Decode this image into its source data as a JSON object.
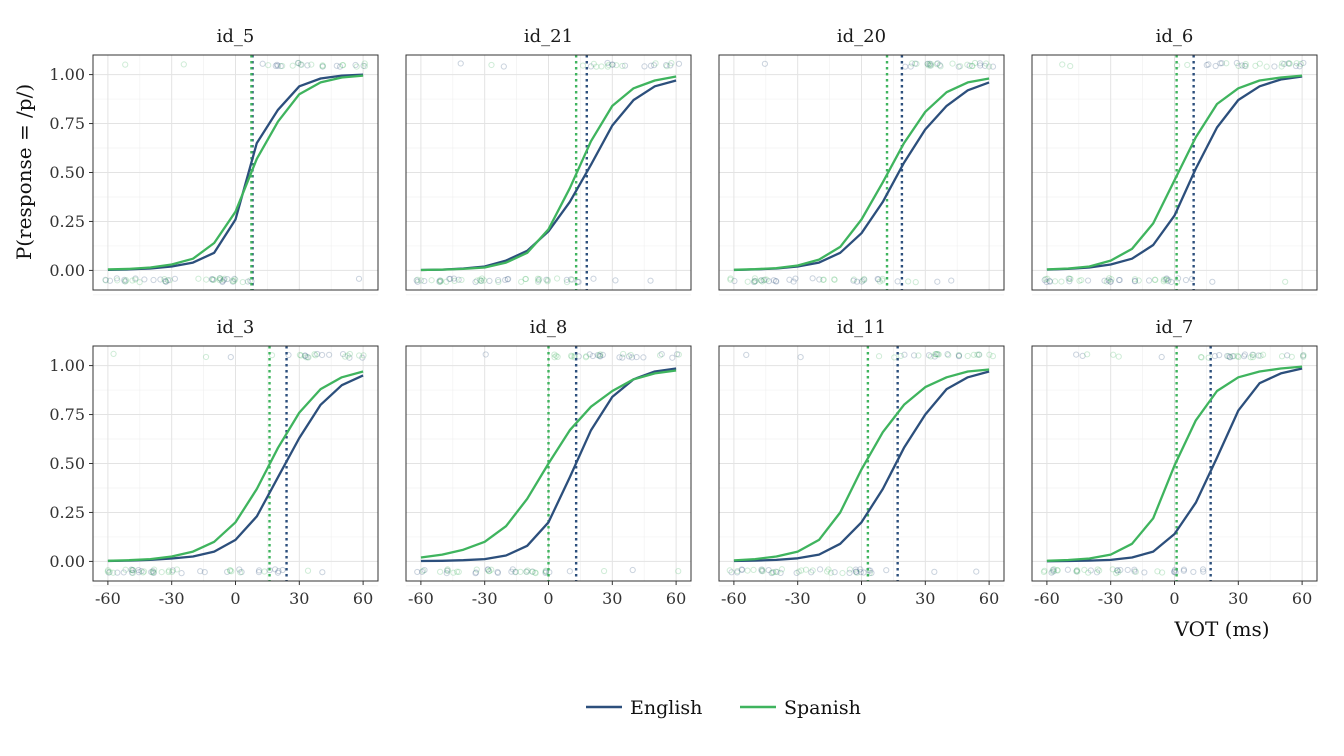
{
  "chart_data": {
    "type": "line",
    "layout": "facet-grid 2 rows x 4 columns",
    "xlabel": "VOT (ms)",
    "ylabel": "P(response = /p/)",
    "x": [
      -60,
      -50,
      -40,
      -30,
      -20,
      -10,
      0,
      10,
      20,
      30,
      40,
      50,
      60
    ],
    "xlim": [
      -67,
      67
    ],
    "ylim": [
      -0.1,
      1.1
    ],
    "x_ticks": [
      -60,
      -30,
      0,
      30,
      60
    ],
    "y_ticks": [
      0,
      0.25,
      0.5,
      0.75,
      1
    ],
    "x_tick_labels": [
      "-60",
      "-30",
      "0",
      "30",
      "60"
    ],
    "y_tick_labels": [
      "0.00",
      "0.25",
      "0.50",
      "0.75",
      "1.00"
    ],
    "grid": true,
    "legend": {
      "position": "bottom",
      "entries": [
        {
          "name": "English",
          "color": "#2c4f7c"
        },
        {
          "name": "Spanish",
          "color": "#3fb45e"
        }
      ]
    },
    "colors": {
      "English": "#2c4f7c",
      "Spanish": "#3fb45e"
    },
    "facets": [
      {
        "label": "id_5",
        "series": [
          {
            "name": "English",
            "values": [
              0.003,
              0.005,
              0.01,
              0.02,
              0.04,
              0.09,
              0.26,
              0.65,
              0.82,
              0.94,
              0.98,
              0.995,
              1.0
            ]
          },
          {
            "name": "Spanish",
            "values": [
              0.005,
              0.008,
              0.015,
              0.03,
              0.06,
              0.14,
              0.3,
              0.57,
              0.76,
              0.9,
              0.96,
              0.985,
              0.995
            ]
          }
        ],
        "boundaries": {
          "English": 8,
          "Spanish": 7.5
        }
      },
      {
        "label": "id_21",
        "series": [
          {
            "name": "English",
            "values": [
              0.002,
              0.004,
              0.01,
              0.02,
              0.05,
              0.1,
              0.2,
              0.35,
              0.54,
              0.74,
              0.87,
              0.94,
              0.97
            ]
          },
          {
            "name": "Spanish",
            "values": [
              0.002,
              0.004,
              0.008,
              0.015,
              0.04,
              0.09,
              0.21,
              0.42,
              0.66,
              0.84,
              0.93,
              0.97,
              0.99
            ]
          }
        ],
        "boundaries": {
          "English": 18,
          "Spanish": 13
        }
      },
      {
        "label": "id_20",
        "series": [
          {
            "name": "English",
            "values": [
              0.002,
              0.005,
              0.01,
              0.02,
              0.04,
              0.09,
              0.19,
              0.35,
              0.55,
              0.72,
              0.84,
              0.92,
              0.96
            ]
          },
          {
            "name": "Spanish",
            "values": [
              0.003,
              0.006,
              0.012,
              0.025,
              0.055,
              0.12,
              0.26,
              0.45,
              0.65,
              0.81,
              0.91,
              0.96,
              0.98
            ]
          }
        ],
        "boundaries": {
          "English": 19,
          "Spanish": 12
        }
      },
      {
        "label": "id_6",
        "series": [
          {
            "name": "English",
            "values": [
              0.004,
              0.008,
              0.015,
              0.03,
              0.06,
              0.13,
              0.28,
              0.52,
              0.73,
              0.87,
              0.94,
              0.975,
              0.99
            ]
          },
          {
            "name": "Spanish",
            "values": [
              0.005,
              0.01,
              0.02,
              0.05,
              0.11,
              0.24,
              0.46,
              0.68,
              0.85,
              0.93,
              0.97,
              0.985,
              0.995
            ]
          }
        ],
        "boundaries": {
          "English": 9,
          "Spanish": 1
        }
      },
      {
        "label": "id_3",
        "series": [
          {
            "name": "English",
            "values": [
              0.002,
              0.004,
              0.008,
              0.015,
              0.025,
              0.05,
              0.11,
              0.23,
              0.43,
              0.63,
              0.8,
              0.9,
              0.95
            ]
          },
          {
            "name": "Spanish",
            "values": [
              0.003,
              0.006,
              0.012,
              0.025,
              0.05,
              0.1,
              0.2,
              0.37,
              0.58,
              0.76,
              0.88,
              0.94,
              0.97
            ]
          }
        ],
        "boundaries": {
          "English": 24,
          "Spanish": 16
        }
      },
      {
        "label": "id_8",
        "series": [
          {
            "name": "English",
            "values": [
              0.002,
              0.003,
              0.006,
              0.012,
              0.03,
              0.08,
              0.2,
              0.43,
              0.67,
              0.84,
              0.93,
              0.97,
              0.985
            ]
          },
          {
            "name": "Spanish",
            "values": [
              0.02,
              0.035,
              0.06,
              0.1,
              0.18,
              0.32,
              0.5,
              0.67,
              0.79,
              0.87,
              0.93,
              0.96,
              0.975
            ]
          }
        ],
        "boundaries": {
          "English": 13,
          "Spanish": 0
        }
      },
      {
        "label": "id_11",
        "series": [
          {
            "name": "English",
            "values": [
              0.002,
              0.004,
              0.008,
              0.016,
              0.035,
              0.09,
              0.2,
              0.37,
              0.58,
              0.75,
              0.88,
              0.94,
              0.97
            ]
          },
          {
            "name": "Spanish",
            "values": [
              0.005,
              0.012,
              0.025,
              0.05,
              0.11,
              0.25,
              0.47,
              0.66,
              0.8,
              0.89,
              0.94,
              0.97,
              0.98
            ]
          }
        ],
        "boundaries": {
          "English": 17,
          "Spanish": 3
        }
      },
      {
        "label": "id_7",
        "series": [
          {
            "name": "English",
            "values": [
              0.001,
              0.002,
              0.004,
              0.008,
              0.02,
              0.05,
              0.14,
              0.3,
              0.53,
              0.77,
              0.91,
              0.96,
              0.985
            ]
          },
          {
            "name": "Spanish",
            "values": [
              0.003,
              0.007,
              0.015,
              0.035,
              0.09,
              0.22,
              0.49,
              0.72,
              0.87,
              0.94,
              0.97,
              0.985,
              0.995
            ]
          }
        ],
        "boundaries": {
          "English": 17,
          "Spanish": 1
        }
      }
    ]
  }
}
